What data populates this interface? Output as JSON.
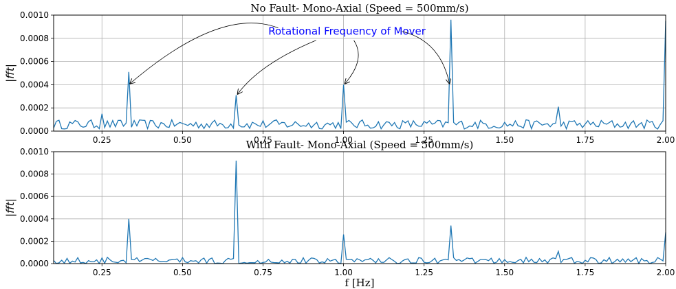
{
  "chart_data": [
    {
      "type": "line",
      "title": "No Fault- Mono-Axial (Speed = 500mm/s)",
      "ylabel": "|fft|",
      "xlabel": "",
      "xlim": [
        0.1,
        2.0
      ],
      "ylim": [
        0,
        0.001
      ],
      "grid": true,
      "xticks": [
        "0.25",
        "0.50",
        "0.75",
        "1.00",
        "1.25",
        "1.50",
        "1.75",
        "2.00"
      ],
      "yticks": [
        "0.0000",
        "0.0002",
        "0.0004",
        "0.0006",
        "0.0008",
        "0.0010"
      ],
      "series_color": "#1f77b4",
      "baseline": {
        "level": 5e-05,
        "noise": 4e-05
      },
      "peaks": [
        {
          "x": 0.25,
          "y": 0.00015
        },
        {
          "x": 0.333,
          "y": 0.00051
        },
        {
          "x": 0.667,
          "y": 0.00031
        },
        {
          "x": 1.0,
          "y": 0.0004
        },
        {
          "x": 1.333,
          "y": 0.00096
        },
        {
          "x": 1.667,
          "y": 0.00021
        },
        {
          "x": 2.0,
          "y": 0.00095
        }
      ],
      "annotation": {
        "text": "Rotational Frequency of Mover",
        "color": "#0000ff",
        "text_x": 1.0,
        "text_y": 0.00083,
        "targets": [
          {
            "x": 0.333,
            "y": 0.00041
          },
          {
            "x": 0.667,
            "y": 0.00032
          },
          {
            "x": 1.0,
            "y": 0.00041
          },
          {
            "x": 1.333,
            "y": 0.00041
          }
        ]
      }
    },
    {
      "type": "line",
      "title": "With Fault- Mono-Axial (Speed = 500mm/s)",
      "ylabel": "|fft|",
      "xlabel": "f [Hz]",
      "xlim": [
        0.1,
        2.0
      ],
      "ylim": [
        0,
        0.001
      ],
      "grid": true,
      "xticks": [
        "0.25",
        "0.50",
        "0.75",
        "1.00",
        "1.25",
        "1.50",
        "1.75",
        "2.00"
      ],
      "yticks": [
        "0.0000",
        "0.0002",
        "0.0004",
        "0.0006",
        "0.0008",
        "0.0010"
      ],
      "series_color": "#1f77b4",
      "baseline": {
        "level": 2e-05,
        "noise": 3e-05
      },
      "peaks": [
        {
          "x": 0.333,
          "y": 0.0004
        },
        {
          "x": 0.667,
          "y": 0.00092
        },
        {
          "x": 1.0,
          "y": 0.00026
        },
        {
          "x": 1.333,
          "y": 0.00034
        },
        {
          "x": 1.667,
          "y": 0.00011
        },
        {
          "x": 2.0,
          "y": 0.00028
        }
      ]
    }
  ]
}
